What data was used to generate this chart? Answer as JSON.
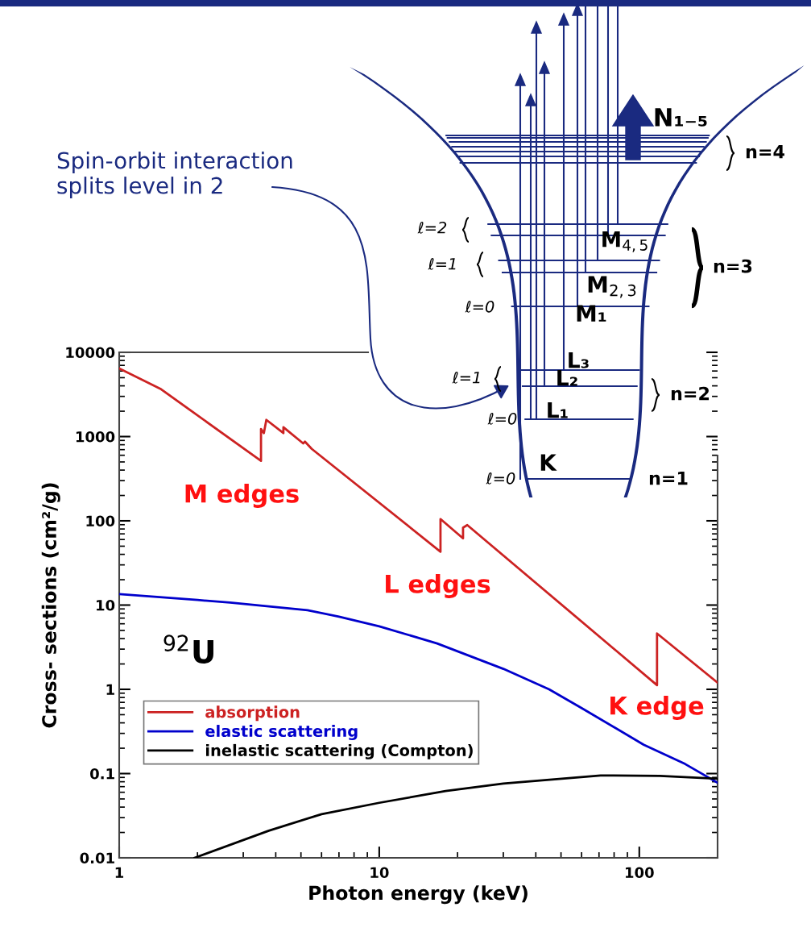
{
  "chart_data": {
    "type": "line",
    "xlabel": "Photon energy (keV)",
    "ylabel": "Cross- sections (cm²/g)",
    "log": "xy",
    "xlim": [
      1,
      200
    ],
    "xticks": [
      1,
      10,
      100
    ],
    "ylim": [
      0.01,
      10000
    ],
    "yticks": [
      0.01,
      0.1,
      1,
      10,
      100,
      1000,
      10000
    ],
    "legend": "bottom left",
    "series": [
      {
        "name": "absorption",
        "color": "#cc2222",
        "x": [
          1,
          1.45,
          3.51,
          3.51,
          3.6,
          3.68,
          4.28,
          4.28,
          5.1,
          5.18,
          5.5,
          17.2,
          17.2,
          21,
          21,
          21.8,
          117,
          117,
          200
        ],
        "values": [
          6450,
          3640,
          515,
          1230,
          1100,
          1580,
          1100,
          1290,
          830,
          870,
          715,
          43,
          105,
          62,
          83,
          89,
          1.12,
          4.6,
          1.2
        ]
      },
      {
        "name": "elastic scattering",
        "color": "#0000cc",
        "x": [
          1,
          2,
          2.67,
          5.3,
          7,
          10,
          16.7,
          30,
          45,
          60,
          104,
          150,
          200
        ],
        "values": [
          13.5,
          11.5,
          10.7,
          8.7,
          7.3,
          5.6,
          3.5,
          1.75,
          1.0,
          0.6,
          0.22,
          0.13,
          0.078
        ]
      },
      {
        "name": "inelastic scattering (Compton)",
        "color": "#000000",
        "x": [
          1.95,
          3.76,
          6,
          10,
          18,
          30,
          71,
          120,
          200
        ],
        "values": [
          0.01,
          0.021,
          0.033,
          0.045,
          0.062,
          0.076,
          0.095,
          0.094,
          0.087
        ]
      }
    ],
    "annotations": [
      "M edges",
      "L edges",
      "K edge",
      "$^{92}$U",
      "Spin-orbit interaction\nsplits level in 2",
      "N₁₋₅",
      "n=4",
      "ℓ=2",
      "ℓ=1",
      "M$_{4,5}$",
      "n=3",
      "M$_{2,3}$",
      "ℓ=0",
      "M₁",
      "ℓ=1",
      "L₃",
      "L₂",
      "n=2",
      "ℓ=0",
      "L₁",
      "ℓ=0",
      "K",
      "n=1"
    ]
  }
}
